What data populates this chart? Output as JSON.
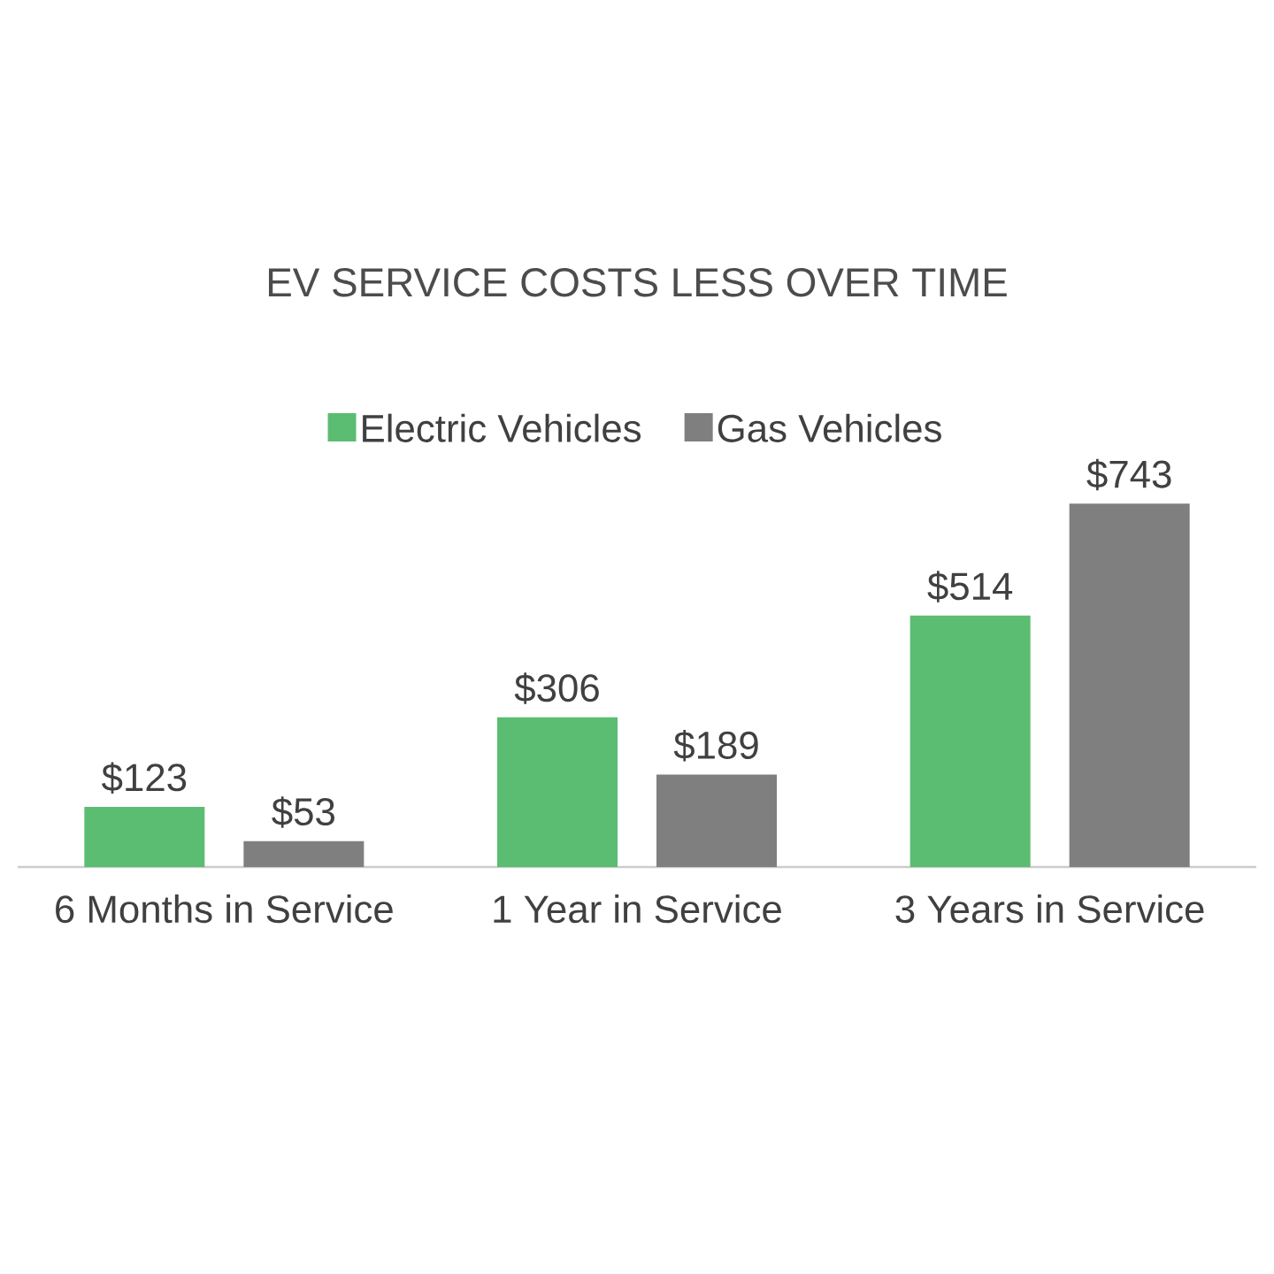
{
  "chart_data": {
    "type": "bar",
    "title": "EV SERVICE COSTS LESS OVER TIME",
    "categories": [
      "6 Months in Service",
      "1 Year in Service",
      "3 Years in Service"
    ],
    "legend": "top",
    "series": [
      {
        "name": "Electric Vehicles",
        "color": "#5bbd72",
        "values": [
          123,
          306,
          514
        ],
        "value_labels": [
          "$123",
          "$306",
          "$514"
        ]
      },
      {
        "name": "Gas Vehicles",
        "color": "#7f7f7f",
        "values": [
          53,
          189,
          743
        ],
        "value_labels": [
          "$53",
          "$189",
          "$743"
        ]
      }
    ]
  }
}
